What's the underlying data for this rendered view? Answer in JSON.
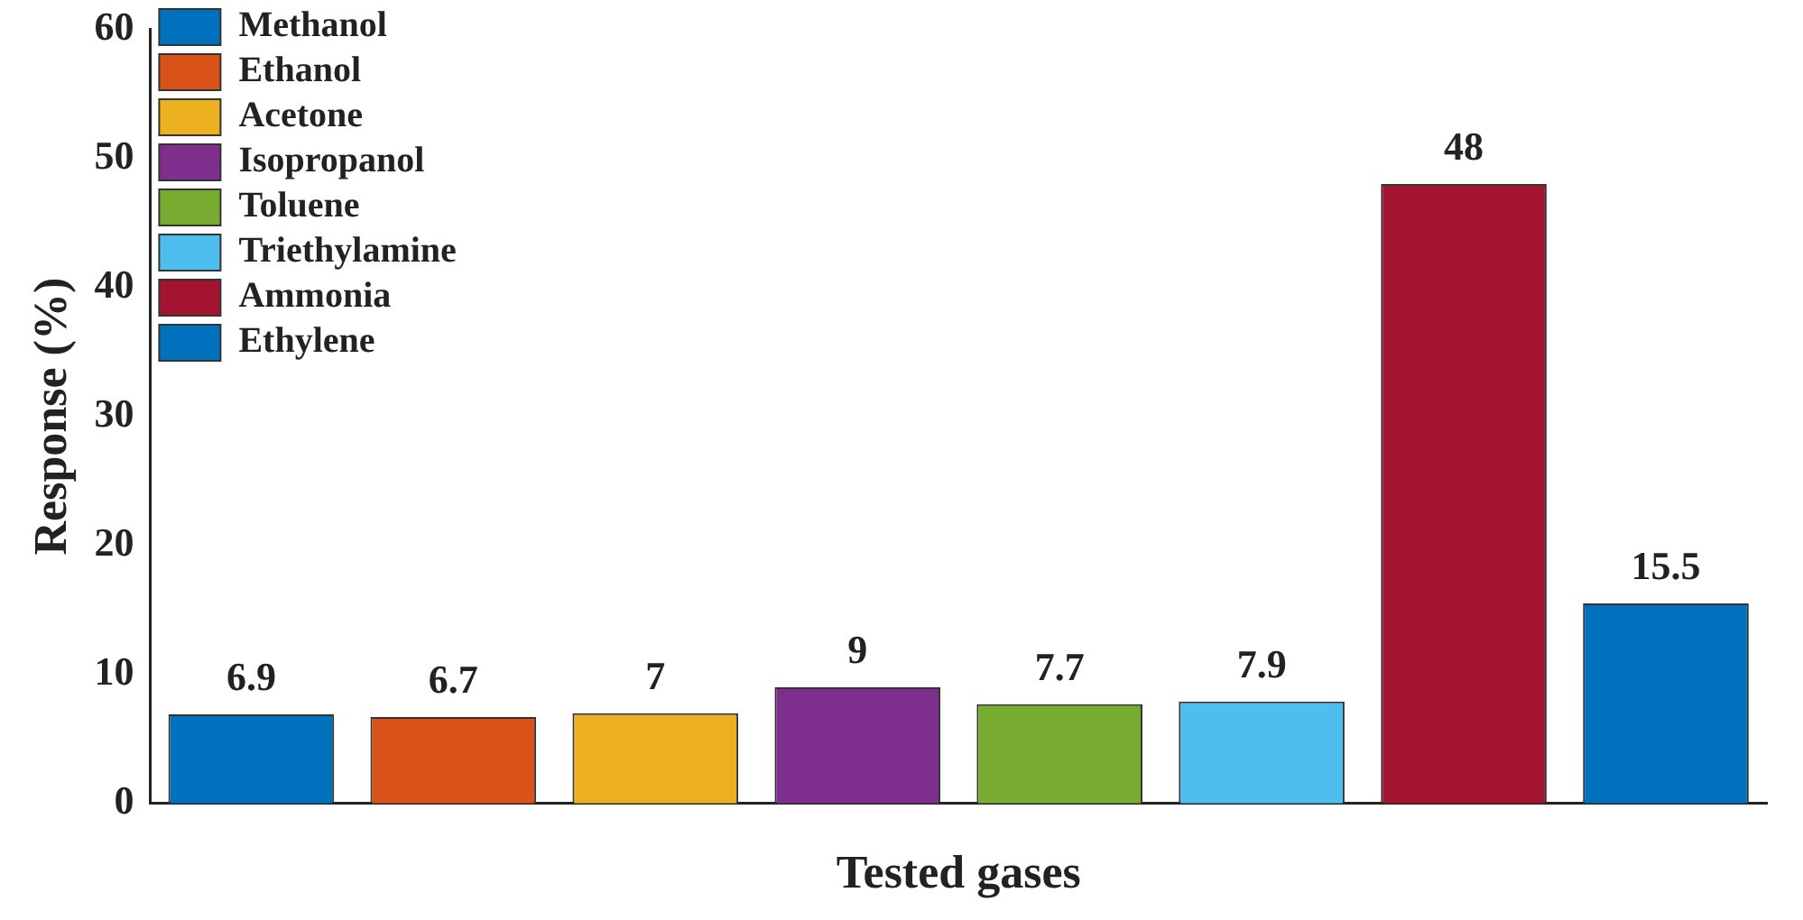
{
  "chart_data": {
    "type": "bar",
    "xlabel": "Tested gases",
    "ylabel": "Response (%)",
    "categories": [
      null,
      null,
      null,
      null,
      null,
      null,
      null,
      null
    ],
    "series": [
      {
        "name": "Methanol",
        "color": "#0072bd",
        "values": [
          6.9,
          null,
          null,
          null,
          null,
          null,
          null,
          null
        ]
      },
      {
        "name": "Ethanol",
        "color": "#d95319",
        "values": [
          null,
          6.7,
          null,
          null,
          null,
          null,
          null,
          null
        ]
      },
      {
        "name": "Acetone",
        "color": "#edb120",
        "values": [
          null,
          null,
          7,
          null,
          null,
          null,
          null,
          null
        ]
      },
      {
        "name": "Isopropanol",
        "color": "#7e2f8e",
        "values": [
          null,
          null,
          null,
          9,
          null,
          null,
          null,
          null
        ]
      },
      {
        "name": "Toluene",
        "color": "#77ac30",
        "values": [
          null,
          null,
          null,
          null,
          7.7,
          null,
          null,
          null
        ]
      },
      {
        "name": "Triethylamine",
        "color": "#4dbeee",
        "values": [
          null,
          null,
          null,
          null,
          null,
          7.9,
          null,
          null
        ]
      },
      {
        "name": "Ammonia",
        "color": "#a2142f",
        "values": [
          null,
          null,
          null,
          null,
          null,
          null,
          48,
          null
        ]
      },
      {
        "name": "Ethylene",
        "color": "#0072bd",
        "values": [
          null,
          null,
          null,
          null,
          null,
          null,
          null,
          15.5
        ]
      }
    ],
    "ylim": [
      0,
      60
    ],
    "yticks": [
      0,
      10,
      20,
      30,
      40,
      50,
      60
    ],
    "grid": false,
    "legend": "top left",
    "data_labels": true
  }
}
